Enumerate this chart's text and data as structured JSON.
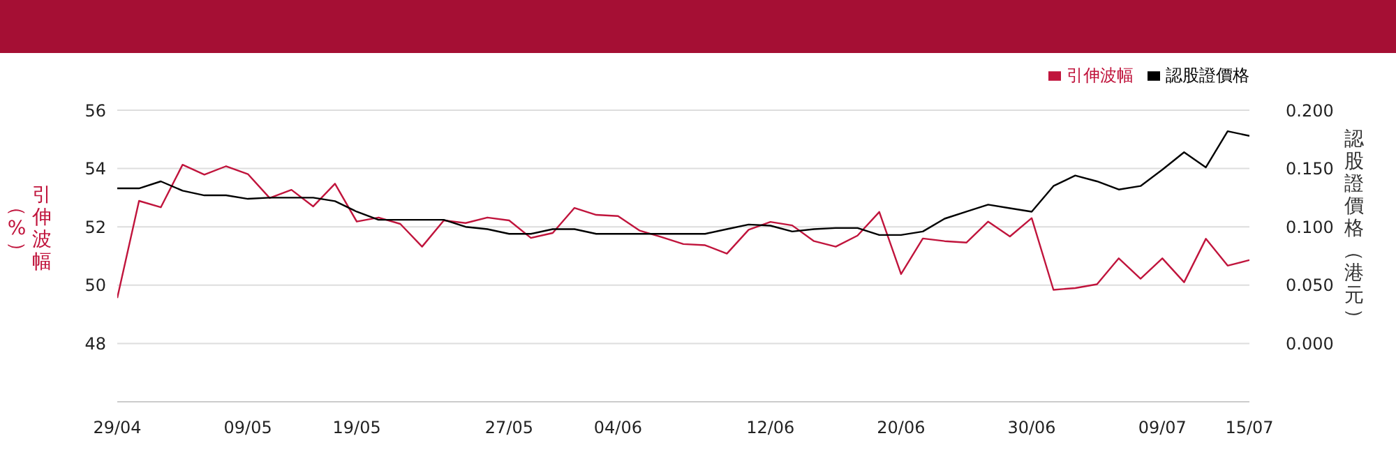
{
  "chart_data": {
    "type": "line",
    "ylabel": "引伸波幅（%）",
    "y2label": "認股證價格（港元）",
    "categories": [
      "29/04",
      null,
      null,
      null,
      null,
      null,
      "09/05",
      null,
      null,
      null,
      null,
      "19/05",
      null,
      null,
      null,
      null,
      null,
      null,
      "27/05",
      null,
      null,
      null,
      null,
      "04/06",
      null,
      null,
      null,
      null,
      null,
      null,
      "12/06",
      null,
      null,
      null,
      null,
      null,
      "20/06",
      null,
      null,
      null,
      null,
      null,
      "30/06",
      null,
      null,
      null,
      null,
      null,
      "09/07",
      null,
      null,
      null,
      "15/07"
    ],
    "series": [
      {
        "name": "引伸波幅",
        "color": "#c0143c",
        "values": [
          49.56,
          52.89,
          52.67,
          54.13,
          53.79,
          54.08,
          53.81,
          52.99,
          53.27,
          52.7,
          53.48,
          52.18,
          52.32,
          52.1,
          51.32,
          52.22,
          52.13,
          52.32,
          52.22,
          51.62,
          51.79,
          52.65,
          52.41,
          52.37,
          51.87,
          51.65,
          51.41,
          51.37,
          51.08,
          51.9,
          52.17,
          52.05,
          51.51,
          51.32,
          51.7,
          52.51,
          50.38,
          51.6,
          51.51,
          51.46,
          52.18,
          51.67,
          52.3,
          49.84,
          49.9,
          50.03,
          50.92,
          50.22,
          50.92,
          50.1,
          51.59,
          50.67,
          50.86
        ]
      },
      {
        "name": "認股證價格",
        "color": "#000000",
        "axis": "y2",
        "values": [
          0.133,
          0.133,
          0.139,
          0.131,
          0.127,
          0.127,
          0.124,
          0.125,
          0.125,
          0.125,
          0.122,
          0.113,
          0.106,
          0.106,
          0.106,
          0.106,
          0.1,
          0.098,
          0.094,
          0.094,
          0.098,
          0.098,
          0.094,
          0.094,
          0.094,
          0.094,
          0.094,
          0.094,
          0.098,
          0.102,
          0.101,
          0.096,
          0.098,
          0.099,
          0.099,
          0.093,
          0.093,
          0.096,
          0.107,
          0.113,
          0.119,
          0.116,
          0.113,
          0.135,
          0.144,
          0.139,
          0.132,
          0.135,
          0.149,
          0.164,
          0.151,
          0.182,
          0.178
        ]
      }
    ],
    "ylim": [
      46,
      56
    ],
    "yticks": [
      48,
      50,
      52,
      54,
      56
    ],
    "y2lim": [
      -0.05,
      0.2
    ],
    "y2ticks": [
      {
        "value": 0,
        "label": "0.000"
      },
      {
        "value": 0.05,
        "label": "0.050"
      },
      {
        "value": 0.1,
        "label": "0.100"
      },
      {
        "value": 0.15,
        "label": "0.150"
      },
      {
        "value": 0.2,
        "label": "0.200"
      }
    ],
    "grid": "y",
    "legend": "top right",
    "marker": "none",
    "line_style": "solid"
  }
}
